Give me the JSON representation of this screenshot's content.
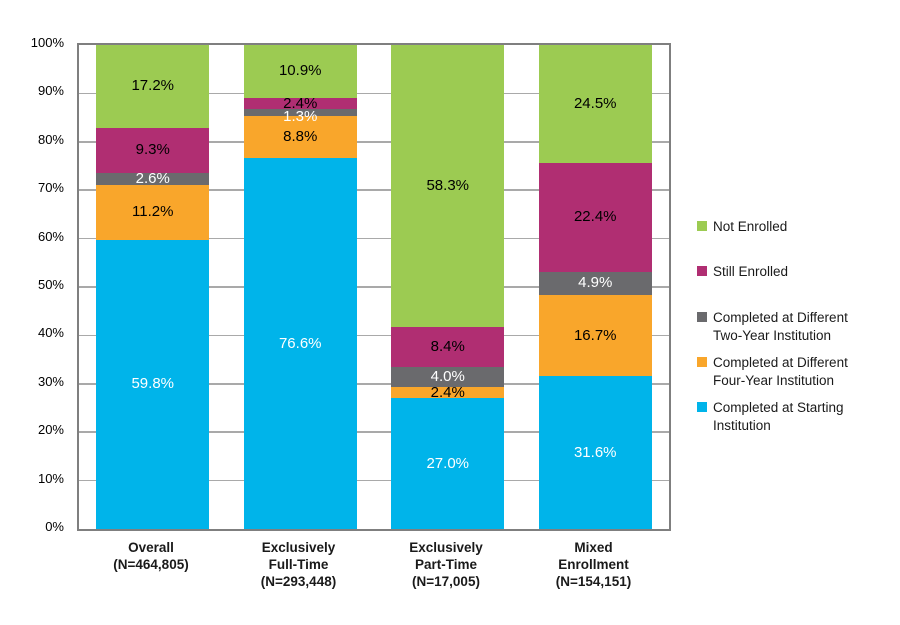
{
  "chart_data": {
    "type": "bar",
    "stacked": true,
    "title": "",
    "xlabel": "",
    "ylabel": "",
    "unit": "%",
    "ylim": [
      0,
      100
    ],
    "y_tick_step": 10,
    "y_tick_labels": [
      "0%",
      "10%",
      "20%",
      "30%",
      "40%",
      "50%",
      "60%",
      "70%",
      "80%",
      "90%",
      "100%"
    ],
    "grid": true,
    "categories": [
      {
        "lines": [
          "Overall",
          "(N=464,805)"
        ]
      },
      {
        "lines": [
          "Exclusively",
          "Full-Time",
          "(N=293,448)"
        ]
      },
      {
        "lines": [
          "Exclusively",
          "Part-Time",
          "(N=17,005)"
        ]
      },
      {
        "lines": [
          "Mixed",
          "Enrollment",
          "(N=154,151)"
        ]
      }
    ],
    "series": [
      {
        "name": "Completed at Starting Institution",
        "color": "#00B4EA",
        "label_color": "#FFFFFF",
        "values": [
          59.8,
          76.6,
          27.0,
          31.6
        ]
      },
      {
        "name": "Completed at Different Four-Year Institution",
        "color": "#F9A62B",
        "label_color": "#000000",
        "values": [
          11.2,
          8.8,
          2.4,
          16.7
        ]
      },
      {
        "name": "Completed at Different Two-Year Institution",
        "color": "#6A6A6D",
        "label_color": "#FFFFFF",
        "values": [
          2.6,
          1.3,
          4.0,
          4.9
        ]
      },
      {
        "name": "Still Enrolled",
        "color": "#B02E72",
        "label_color": "#000000",
        "values": [
          9.3,
          2.4,
          8.4,
          22.4
        ]
      },
      {
        "name": "Not Enrolled",
        "color": "#9CCB52",
        "label_color": "#000000",
        "values": [
          17.2,
          10.9,
          58.3,
          24.5
        ]
      }
    ],
    "legend": {
      "position": "right",
      "entries": [
        {
          "lines": [
            "Not Enrolled"
          ],
          "color": "#9CCB52"
        },
        {
          "lines": [
            "Still Enrolled"
          ],
          "color": "#B02E72"
        },
        {
          "lines": [
            "Completed at Different",
            "Two-Year Institution"
          ],
          "color": "#6A6A6D"
        },
        {
          "lines": [
            "Completed at Different",
            "Four-Year Institution"
          ],
          "color": "#F9A62B"
        },
        {
          "lines": [
            "Completed at Starting",
            "Institution"
          ],
          "color": "#00B4EA"
        }
      ]
    }
  }
}
